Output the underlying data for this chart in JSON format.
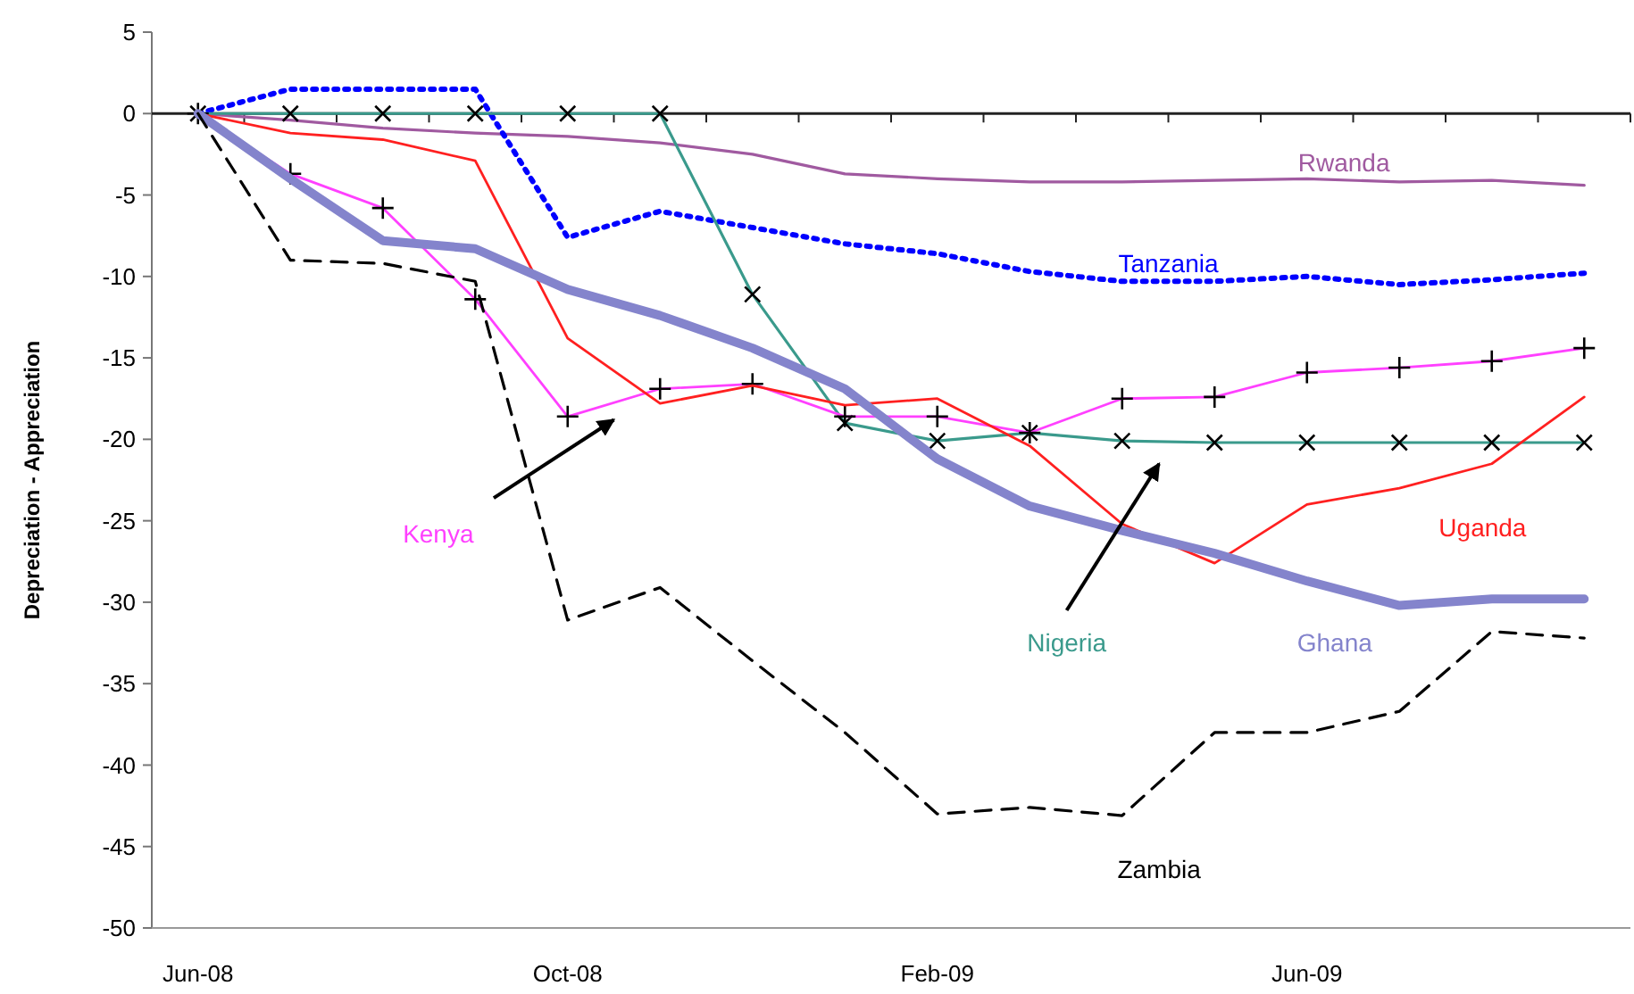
{
  "chart_data": {
    "type": "line",
    "ylabel": "Depreciation - Appreciation",
    "categories": [
      "Jun-08",
      null,
      null,
      null,
      "Oct-08",
      null,
      null,
      null,
      "Feb-09",
      null,
      null,
      null,
      "Jun-09",
      null,
      null,
      null
    ],
    "ylim": [
      -50,
      5
    ],
    "yticks": [
      -50,
      -45,
      -40,
      -35,
      -30,
      -25,
      -20,
      -15,
      -10,
      -5,
      0,
      5
    ],
    "series": [
      {
        "name": "Rwanda",
        "color": "#a05aa0",
        "line_style": "solid",
        "marker": "none",
        "values": [
          0,
          -0.4,
          -0.9,
          -1.2,
          -1.4,
          -1.8,
          -2.5,
          -3.7,
          -4.0,
          -4.2,
          -4.2,
          -4.1,
          -4.0,
          -4.2,
          -4.1,
          -4.4
        ]
      },
      {
        "name": "Tanzania",
        "color": "#0000ff",
        "line_style": "dotted",
        "marker": "none",
        "values": [
          0,
          1.5,
          1.5,
          1.5,
          -7.6,
          -6.0,
          -7.0,
          -8.0,
          -8.6,
          -9.7,
          -10.3,
          -10.3,
          -10.0,
          -10.5,
          -10.2,
          -9.8
        ]
      },
      {
        "name": "Nigeria",
        "color": "#3a9a8c",
        "line_style": "solid",
        "marker": "cross",
        "values": [
          0,
          0,
          0,
          0,
          0,
          0,
          -11.1,
          -19.0,
          -20.1,
          -19.6,
          -20.1,
          -20.2,
          -20.2,
          -20.2,
          -20.2,
          -20.2
        ]
      },
      {
        "name": "Kenya",
        "color": "#ff40ff",
        "line_style": "solid",
        "marker": "cross",
        "values": [
          0,
          -3.7,
          -5.8,
          -11.4,
          -18.6,
          -16.9,
          -16.6,
          -18.6,
          -18.6,
          -19.6,
          -17.5,
          -17.4,
          -15.9,
          -15.6,
          -15.2,
          -14.4
        ]
      },
      {
        "name": "Uganda",
        "color": "#ff2020",
        "line_style": "solid",
        "marker": "none",
        "values": [
          0,
          -1.2,
          -1.6,
          -2.9,
          -13.8,
          -17.8,
          -16.7,
          -17.9,
          -17.5,
          -20.4,
          -25.2,
          -27.6,
          -24.0,
          -23.0,
          -21.5,
          -17.4
        ]
      },
      {
        "name": "Ghana",
        "color": "#8484cc",
        "line_style": "solid",
        "marker": "none",
        "values": [
          0,
          -4.0,
          -7.8,
          -8.3,
          -10.8,
          -12.4,
          -14.4,
          -16.9,
          -21.2,
          -24.1,
          -25.6,
          -27.0,
          -28.7,
          -30.2,
          -29.8,
          -29.8
        ]
      },
      {
        "name": "Zambia",
        "color": "#000000",
        "line_style": "dashed",
        "marker": "none",
        "values": [
          0,
          -9.0,
          -9.2,
          -10.3,
          -31.1,
          -29.1,
          -33.6,
          -38.0,
          -43.0,
          -42.6,
          -43.1,
          -38.0,
          -38.0,
          -36.7,
          -31.8,
          -32.2
        ]
      }
    ]
  }
}
